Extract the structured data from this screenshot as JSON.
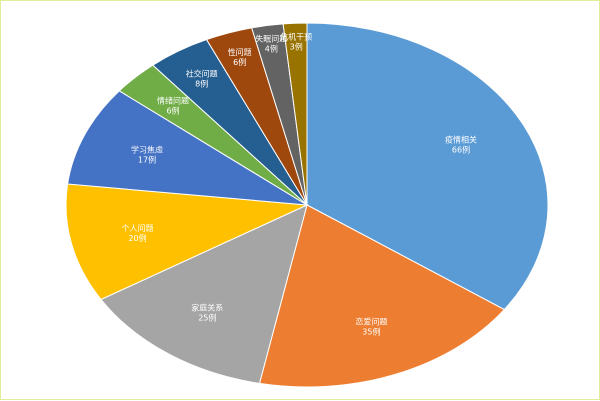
{
  "chart_data": {
    "type": "pie",
    "legend": "none",
    "slices": [
      {
        "name": "疫情相关",
        "value": 66,
        "label": "66例",
        "color": "#5b9bd5"
      },
      {
        "name": "恋爱问题",
        "value": 35,
        "label": "35例",
        "color": "#ed7d31"
      },
      {
        "name": "家庭关系",
        "value": 25,
        "label": "25例",
        "color": "#a5a5a5"
      },
      {
        "name": "个人问题",
        "value": 20,
        "label": "20例",
        "color": "#ffc000"
      },
      {
        "name": "学习焦虑",
        "value": 17,
        "label": "17例",
        "color": "#4472c4"
      },
      {
        "name": "情绪问题",
        "value": 6,
        "label": "6例",
        "color": "#70ad47"
      },
      {
        "name": "社交问题",
        "value": 8,
        "label": "8例",
        "color": "#255e91"
      },
      {
        "name": "性问题",
        "value": 6,
        "label": "6例",
        "color": "#9e480e"
      },
      {
        "name": "失眠问题",
        "value": 4,
        "label": "4例",
        "color": "#636363"
      },
      {
        "name": "危机干预",
        "value": 3,
        "label": "3例",
        "color": "#997300"
      }
    ]
  }
}
